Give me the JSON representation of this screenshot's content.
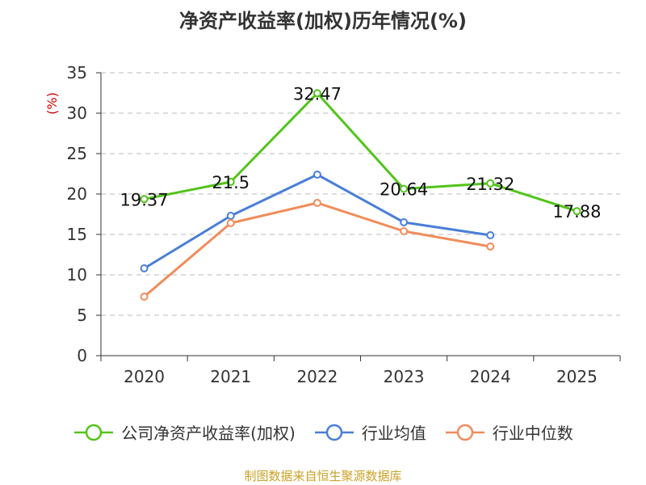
{
  "colors": {
    "company": "#52c41a",
    "industry_avg": "#4a7fd8",
    "industry_median": "#f08c5a",
    "unit_label": "#cc0000",
    "source": "#c9a227",
    "grid": "#bbbbbb",
    "axis": "#333333"
  },
  "chart_data": {
    "type": "line",
    "title": "净资产收益率(加权)历年情况(%)",
    "ylabel": "(%)",
    "xlabel": "",
    "categories": [
      "2020",
      "2021",
      "2022",
      "2023",
      "2024",
      "2025"
    ],
    "ylim": [
      0,
      35
    ],
    "yticks": [
      0,
      5,
      10,
      15,
      20,
      25,
      30,
      35
    ],
    "grid": true,
    "legend_position": "bottom",
    "series": [
      {
        "name": "公司净资产收益率(加权)",
        "color_key": "company",
        "values": [
          19.37,
          21.5,
          32.47,
          20.64,
          21.32,
          17.88
        ],
        "labels": [
          "19.37",
          "21.5",
          "32.47",
          "20.64",
          "21.32",
          "17.88"
        ]
      },
      {
        "name": "行业均值",
        "color_key": "industry_avg",
        "values": [
          10.8,
          17.3,
          22.4,
          16.5,
          14.9,
          null
        ]
      },
      {
        "name": "行业中位数",
        "color_key": "industry_median",
        "values": [
          7.3,
          16.4,
          18.9,
          15.4,
          13.5,
          null
        ]
      }
    ]
  },
  "legend": {
    "items": [
      "公司净资产收益率(加权)",
      "行业均值",
      "行业中位数"
    ]
  },
  "source": "制图数据来自恒生聚源数据库"
}
